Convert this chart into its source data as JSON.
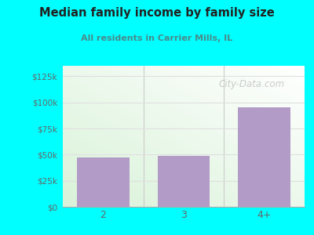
{
  "title": "Median family income by family size",
  "subtitle": "All residents in Carrier Mills, IL",
  "categories": [
    "2",
    "3",
    "4+"
  ],
  "values": [
    47000,
    48500,
    95000
  ],
  "bar_color": "#b39bc8",
  "background_color": "#00FFFF",
  "title_color": "#222222",
  "subtitle_color": "#4a8a8a",
  "tick_label_color": "#666666",
  "yticks": [
    0,
    25000,
    50000,
    75000,
    100000,
    125000
  ],
  "ytick_labels": [
    "$0",
    "$25k",
    "$50k",
    "$75k",
    "$100k",
    "$125k"
  ],
  "ylim": [
    0,
    135000
  ],
  "watermark": "City-Data.com",
  "watermark_color": "#bbbbbb",
  "grid_color": "#e0e0e0"
}
